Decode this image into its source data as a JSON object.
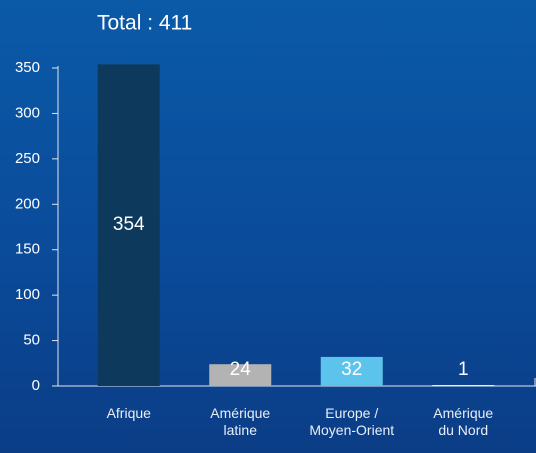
{
  "chart_data": {
    "type": "bar",
    "title": "Total : 411",
    "categories": [
      [
        "Afrique"
      ],
      [
        "Amérique",
        "latine"
      ],
      [
        "Europe /",
        "Moyen-Orient"
      ],
      [
        "Amérique",
        "du Nord"
      ]
    ],
    "values": [
      354,
      24,
      32,
      1
    ],
    "colors": [
      "#0d3a5c",
      "#b3b3b3",
      "#5cc3ec",
      "#ffffff"
    ],
    "ylim": [
      0,
      350
    ],
    "yticks": [
      0,
      50,
      100,
      150,
      200,
      250,
      300,
      350
    ],
    "grid": false
  }
}
